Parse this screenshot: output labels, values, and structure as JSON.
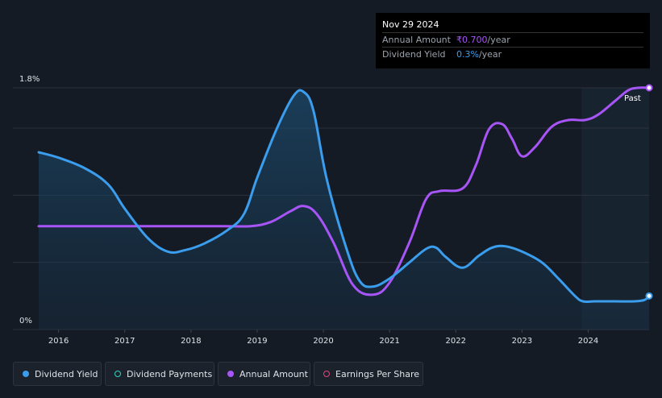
{
  "tooltip": {
    "date": "Nov 29 2024",
    "annual_amount_label": "Annual Amount",
    "annual_amount_value": "₹0.700",
    "annual_amount_unit": "/year",
    "dividend_yield_label": "Dividend Yield",
    "dividend_yield_value": "0.3%",
    "dividend_yield_unit": "/year"
  },
  "past_label": "Past",
  "legend": {
    "dividend_yield": "Dividend Yield",
    "dividend_payments": "Dividend Payments",
    "annual_amount": "Annual Amount",
    "earnings_per_share": "Earnings Per Share"
  },
  "colors": {
    "background": "#151b24",
    "dividend_yield": "#3b9ded",
    "annual_amount": "#a855f7",
    "dividend_payments": "#2dd4bf",
    "earnings_per_share": "#e0457b"
  },
  "chart_data": {
    "type": "line",
    "ylim": [
      0,
      1.8
    ],
    "y_tick_labels": [
      "0%",
      "1.8%"
    ],
    "x_tick_labels": [
      "2016",
      "2017",
      "2018",
      "2019",
      "2020",
      "2021",
      "2022",
      "2023",
      "2024"
    ],
    "xlim": [
      2015.7,
      2024.92
    ],
    "past_region_start": 2023.9,
    "series": [
      {
        "name": "Dividend Yield",
        "color": "#3b9ded",
        "x": [
          2015.7,
          2016.0,
          2016.4,
          2016.75,
          2017.0,
          2017.35,
          2017.65,
          2017.9,
          2018.2,
          2018.55,
          2018.8,
          2019.0,
          2019.3,
          2019.55,
          2019.7,
          2019.85,
          2020.05,
          2020.35,
          2020.55,
          2020.75,
          2021.0,
          2021.3,
          2021.55,
          2021.7,
          2021.85,
          2022.1,
          2022.35,
          2022.55,
          2022.75,
          2023.0,
          2023.3,
          2023.55,
          2023.8,
          2023.92,
          2024.1,
          2024.4,
          2024.7,
          2024.85,
          2024.92
        ],
        "values": [
          1.32,
          1.28,
          1.2,
          1.08,
          0.9,
          0.68,
          0.58,
          0.59,
          0.64,
          0.74,
          0.86,
          1.13,
          1.5,
          1.74,
          1.77,
          1.63,
          1.12,
          0.6,
          0.36,
          0.32,
          0.38,
          0.5,
          0.6,
          0.61,
          0.54,
          0.46,
          0.55,
          0.61,
          0.62,
          0.58,
          0.5,
          0.38,
          0.25,
          0.21,
          0.21,
          0.21,
          0.21,
          0.22,
          0.25
        ]
      },
      {
        "name": "Annual Amount",
        "color": "#a855f7",
        "x": [
          2015.7,
          2016.0,
          2016.5,
          2017.0,
          2017.5,
          2018.0,
          2018.5,
          2018.9,
          2019.2,
          2019.5,
          2019.7,
          2019.9,
          2020.15,
          2020.45,
          2020.75,
          2021.0,
          2021.3,
          2021.55,
          2021.75,
          2022.1,
          2022.3,
          2022.5,
          2022.7,
          2022.85,
          2023.0,
          2023.2,
          2023.45,
          2023.7,
          2023.95,
          2024.15,
          2024.4,
          2024.6,
          2024.75,
          2024.92
        ],
        "values": [
          0.77,
          0.77,
          0.77,
          0.77,
          0.77,
          0.77,
          0.77,
          0.77,
          0.8,
          0.88,
          0.92,
          0.86,
          0.65,
          0.33,
          0.26,
          0.35,
          0.65,
          0.97,
          1.03,
          1.05,
          1.22,
          1.49,
          1.53,
          1.42,
          1.29,
          1.36,
          1.51,
          1.56,
          1.56,
          1.6,
          1.7,
          1.78,
          1.8,
          1.8
        ]
      }
    ]
  }
}
